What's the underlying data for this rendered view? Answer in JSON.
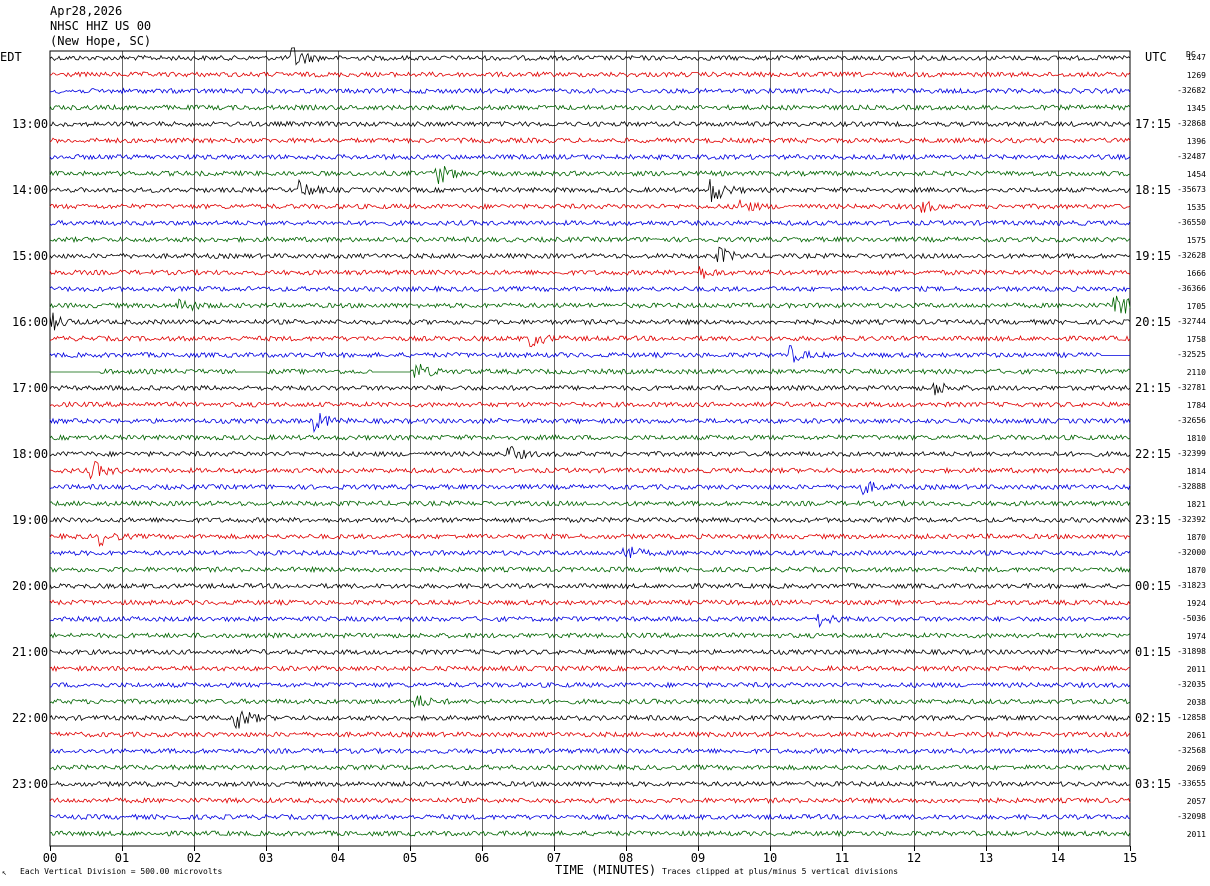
{
  "header": {
    "date": "Apr28,2026",
    "station": "NHSC HHZ US 00",
    "location": "(New Hope, SC)"
  },
  "left_axis_label": "EDT",
  "right_axis_label": "UTC",
  "dc_label": "DC",
  "footer": {
    "scale_note": "Each Vertical Division =  500.00 microvolts",
    "clip_note": "Traces clipped at plus/minus 5 vertical divisions",
    "corner_mark": "↖"
  },
  "chart_data": {
    "type": "line",
    "title": "",
    "xlabel": "TIME (MINUTES)",
    "ylabel": "",
    "xlim": [
      0,
      15
    ],
    "x_ticks": [
      "00",
      "01",
      "02",
      "03",
      "04",
      "05",
      "06",
      "07",
      "08",
      "09",
      "10",
      "11",
      "12",
      "13",
      "14",
      "15"
    ],
    "grid": true,
    "trace_colors": [
      "#000000",
      "#e00000",
      "#0000e0",
      "#006400"
    ],
    "traces_per_hour": 4,
    "minutes_per_trace": 15,
    "left_hour_labels": [
      "13:00",
      "14:00",
      "15:00",
      "16:00",
      "17:00",
      "18:00",
      "19:00",
      "20:00",
      "21:00",
      "22:00",
      "23:00"
    ],
    "right_hour_labels": [
      "17:15",
      "18:15",
      "19:15",
      "20:15",
      "21:15",
      "22:15",
      "23:15",
      "00:15",
      "01:15",
      "02:15",
      "03:15"
    ],
    "dc_offsets": [
      "1247",
      "1269",
      "-32682",
      "1345",
      "-32868",
      "1396",
      "-32487",
      "1454",
      "-35673",
      "1535",
      "-36550",
      "1575",
      "-32628",
      "1666",
      "-36366",
      "1705",
      "-32744",
      "1758",
      "-32525",
      "2110",
      "-32781",
      "1784",
      "-32656",
      "1810",
      "-32399",
      "1814",
      "-32888",
      "1821",
      "-32392",
      "1870",
      "-32000",
      "1870",
      "-31823",
      "1924",
      "-5036",
      "1974",
      "-31898",
      "2011",
      "-32035",
      "2038",
      "-12858",
      "2061",
      "-32568",
      "2069",
      "-33655",
      "2057",
      "-32098",
      "2011"
    ],
    "events": [
      {
        "trace": 0,
        "minute": 3.4,
        "amp": 2.2
      },
      {
        "trace": 7,
        "minute": 5.4,
        "amp": 2.0
      },
      {
        "trace": 8,
        "minute": 3.5,
        "amp": 1.6
      },
      {
        "trace": 8,
        "minute": 9.2,
        "amp": 2.6
      },
      {
        "trace": 9,
        "minute": 9.6,
        "amp": 1.4
      },
      {
        "trace": 9,
        "minute": 12.1,
        "amp": 1.3
      },
      {
        "trace": 12,
        "minute": 9.3,
        "amp": 1.6
      },
      {
        "trace": 13,
        "minute": 9.0,
        "amp": 1.5
      },
      {
        "trace": 15,
        "minute": 1.8,
        "amp": 1.8
      },
      {
        "trace": 15,
        "minute": 14.8,
        "amp": 3.0
      },
      {
        "trace": 16,
        "minute": 0.0,
        "amp": 2.0
      },
      {
        "trace": 17,
        "minute": 6.7,
        "amp": 1.5
      },
      {
        "trace": 18,
        "minute": 10.3,
        "amp": 1.5
      },
      {
        "trace": 19,
        "minute": 5.1,
        "amp": 1.6
      },
      {
        "trace": 20,
        "minute": 12.3,
        "amp": 1.3
      },
      {
        "trace": 22,
        "minute": 3.7,
        "amp": 1.8
      },
      {
        "trace": 24,
        "minute": 6.4,
        "amp": 1.3
      },
      {
        "trace": 25,
        "minute": 0.6,
        "amp": 1.8
      },
      {
        "trace": 26,
        "minute": 11.3,
        "amp": 1.3
      },
      {
        "trace": 29,
        "minute": 0.7,
        "amp": 1.6
      },
      {
        "trace": 30,
        "minute": 8.0,
        "amp": 1.5
      },
      {
        "trace": 34,
        "minute": 10.7,
        "amp": 1.2
      },
      {
        "trace": 39,
        "minute": 5.1,
        "amp": 1.2
      },
      {
        "trace": 40,
        "minute": 2.6,
        "amp": 2.6
      }
    ],
    "gaps": [
      {
        "trace": 18,
        "from_minute": 14.6,
        "to_minute": 15.0
      },
      {
        "trace": 19,
        "from_minute": 0.0,
        "to_minute": 0.7
      },
      {
        "trace": 19,
        "from_minute": 2.6,
        "to_minute": 3.0
      },
      {
        "trace": 19,
        "from_minute": 4.5,
        "to_minute": 5.0
      }
    ]
  }
}
